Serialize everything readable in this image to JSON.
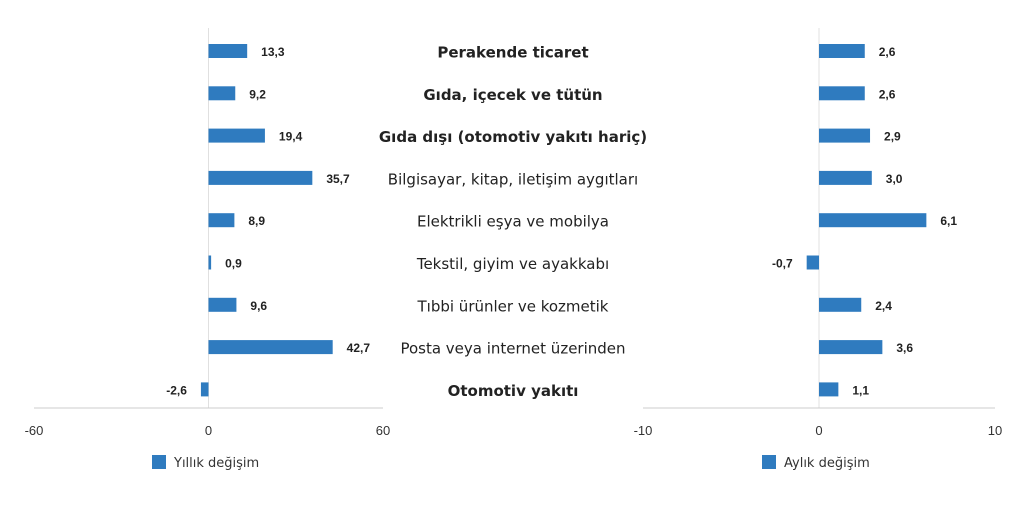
{
  "colors": {
    "bar": "#2f7bbf",
    "axis": "#cccccc",
    "zero_line": "#e0e0e0"
  },
  "chart_data": {
    "type": "bar",
    "orientation": "horizontal",
    "categories": [
      "Perakende ticaret",
      "Gıda, içecek ve tütün",
      "Gıda dışı (otomotiv yakıtı hariç)",
      "Bilgisayar, kitap, iletişim aygıtları",
      "Elektrikli eşya ve mobilya",
      "Tekstil, giyim ve ayakkabı",
      "Tıbbi ürünler ve kozmetik",
      "Posta veya internet üzerinden",
      "Otomotiv yakıtı"
    ],
    "bold_categories": [
      "Perakende ticaret",
      "Gıda, içecek ve tütün",
      "Gıda dışı (otomotiv yakıtı hariç)",
      "Otomotiv yakıtı"
    ],
    "panels": [
      {
        "series_name": "Yıllık değişim",
        "values": [
          13.3,
          9.2,
          19.4,
          35.7,
          8.9,
          0.9,
          9.6,
          42.7,
          -2.6
        ],
        "labels": [
          "13,3",
          "9,2",
          "19,4",
          "35,7",
          "8,9",
          "0,9",
          "9,6",
          "42,7",
          "-2,6"
        ],
        "xlim": [
          -60,
          60
        ],
        "ticks": [
          -60,
          0,
          60
        ],
        "tick_labels": [
          "-60",
          "0",
          "60"
        ]
      },
      {
        "series_name": "Aylık değişim",
        "values": [
          2.6,
          2.6,
          2.9,
          3.0,
          6.1,
          -0.7,
          2.4,
          3.6,
          1.1
        ],
        "labels": [
          "2,6",
          "2,6",
          "2,9",
          "3,0",
          "6,1",
          "-0,7",
          "2,4",
          "3,6",
          "1,1"
        ],
        "xlim": [
          -10,
          10
        ],
        "ticks": [
          -10,
          0,
          10
        ],
        "tick_labels": [
          "-10",
          "0",
          "10"
        ]
      }
    ],
    "legend_position": "bottom"
  }
}
